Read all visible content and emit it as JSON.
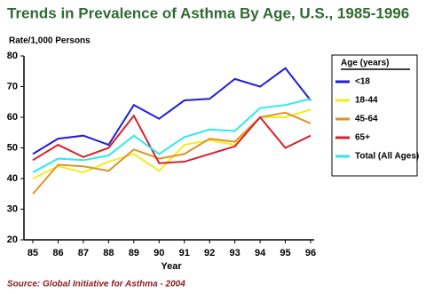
{
  "chart_data": {
    "type": "line",
    "title": "Trends in Prevalence of Asthma By Age, U.S., 1985-1996",
    "ylabel": "Rate/1,000 Persons",
    "xlabel": "Year",
    "source": "Source: Global Initiative for Asthma - 2004",
    "legend_title": "Age (years)",
    "legend": "right",
    "categories": [
      "85",
      "86",
      "87",
      "88",
      "89",
      "90",
      "91",
      "92",
      "93",
      "94",
      "95",
      "96"
    ],
    "series": [
      {
        "name": "<18",
        "color": "#1f1fd6",
        "values": [
          48,
          53,
          54,
          51,
          64,
          59.5,
          65.5,
          66,
          72.5,
          70,
          76,
          65.5
        ]
      },
      {
        "name": "18-44",
        "color": "#f2ee1a",
        "values": [
          40,
          44,
          42,
          45.5,
          48,
          42.5,
          51,
          52.5,
          51,
          60,
          60,
          62.5
        ]
      },
      {
        "name": "45-64",
        "color": "#e0922a",
        "values": [
          35,
          44.5,
          44,
          42.5,
          49.5,
          46.5,
          48,
          53,
          52,
          60,
          61.5,
          58
        ]
      },
      {
        "name": "65+",
        "color": "#d8202a",
        "values": [
          46,
          51,
          47,
          50,
          60.5,
          45,
          45.5,
          48,
          50.5,
          60,
          50,
          54
        ]
      },
      {
        "name": "Total (All Ages)",
        "color": "#2ee8ec",
        "values": [
          42,
          46.5,
          46,
          47.5,
          54,
          48,
          53.5,
          56,
          55.5,
          63,
          64,
          66
        ]
      }
    ],
    "ylim": [
      20,
      80
    ],
    "yticks": [
      20,
      30,
      40,
      50,
      60,
      70,
      80
    ]
  }
}
